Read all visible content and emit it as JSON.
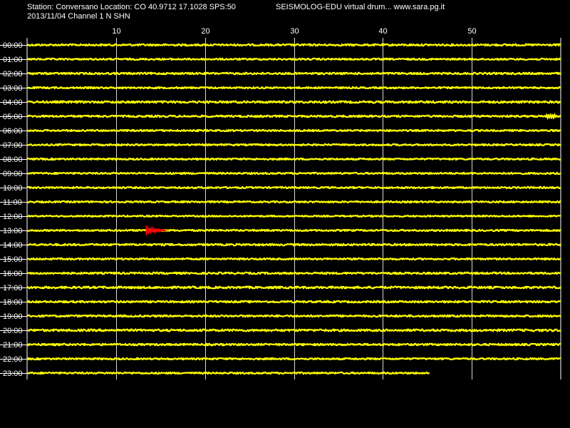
{
  "header": {
    "station_line": "Station: Conversano Location: CO 40.9712 17.1028 SPS:50",
    "app_line": "SEISMOLOG-EDU virtual drum... www.sara.pg.it",
    "date_line": "2013/11/04  Channel 1 N SHN"
  },
  "colors": {
    "background": "#000000",
    "trace": "#ffff00",
    "event": "#ff0000",
    "grid": "#ffffff",
    "text": "#ffffff"
  },
  "chart_data": {
    "type": "line",
    "title": "",
    "xlabel": "",
    "ylabel": "",
    "x_unit_note": "minutes within hour",
    "xlim": [
      0,
      60
    ],
    "x_ticks": [
      10,
      20,
      30,
      40,
      50
    ],
    "grid": true,
    "series": [
      {
        "label": "00:00",
        "end_minute": 60,
        "amplitude": 0.8
      },
      {
        "label": "01:00",
        "end_minute": 60,
        "amplitude": 0.7
      },
      {
        "label": "02:00",
        "end_minute": 60,
        "amplitude": 0.8
      },
      {
        "label": "03:00",
        "end_minute": 60,
        "amplitude": 0.7
      },
      {
        "label": "04:00",
        "end_minute": 60,
        "amplitude": 0.9
      },
      {
        "label": "05:00",
        "end_minute": 60,
        "amplitude": 0.8
      },
      {
        "label": "06:00",
        "end_minute": 60,
        "amplitude": 0.7
      },
      {
        "label": "07:00",
        "end_minute": 60,
        "amplitude": 0.7
      },
      {
        "label": "08:00",
        "end_minute": 60,
        "amplitude": 0.7
      },
      {
        "label": "09:00",
        "end_minute": 60,
        "amplitude": 0.7
      },
      {
        "label": "10:00",
        "end_minute": 60,
        "amplitude": 0.7
      },
      {
        "label": "11:00",
        "end_minute": 60,
        "amplitude": 0.7
      },
      {
        "label": "12:00",
        "end_minute": 60,
        "amplitude": 0.6
      },
      {
        "label": "13:00",
        "end_minute": 60,
        "amplitude": 0.7
      },
      {
        "label": "14:00",
        "end_minute": 60,
        "amplitude": 0.8
      },
      {
        "label": "15:00",
        "end_minute": 60,
        "amplitude": 0.7
      },
      {
        "label": "16:00",
        "end_minute": 60,
        "amplitude": 0.8
      },
      {
        "label": "17:00",
        "end_minute": 60,
        "amplitude": 0.9
      },
      {
        "label": "18:00",
        "end_minute": 60,
        "amplitude": 0.8
      },
      {
        "label": "19:00",
        "end_minute": 60,
        "amplitude": 0.8
      },
      {
        "label": "20:00",
        "end_minute": 60,
        "amplitude": 0.9
      },
      {
        "label": "21:00",
        "end_minute": 60,
        "amplitude": 0.8
      },
      {
        "label": "22:00",
        "end_minute": 60,
        "amplitude": 0.7
      },
      {
        "label": "23:00",
        "end_minute": 45.3,
        "amplitude": 0.7
      }
    ],
    "events": [
      {
        "row": "05:00",
        "start_minute": 58.0,
        "end_minute": 59.8,
        "color": "#ffff00",
        "amplitude": 4
      },
      {
        "row": "13:00",
        "start_minute": 13.4,
        "end_minute": 15.7,
        "color": "#ff0000",
        "amplitude": 6
      }
    ]
  }
}
